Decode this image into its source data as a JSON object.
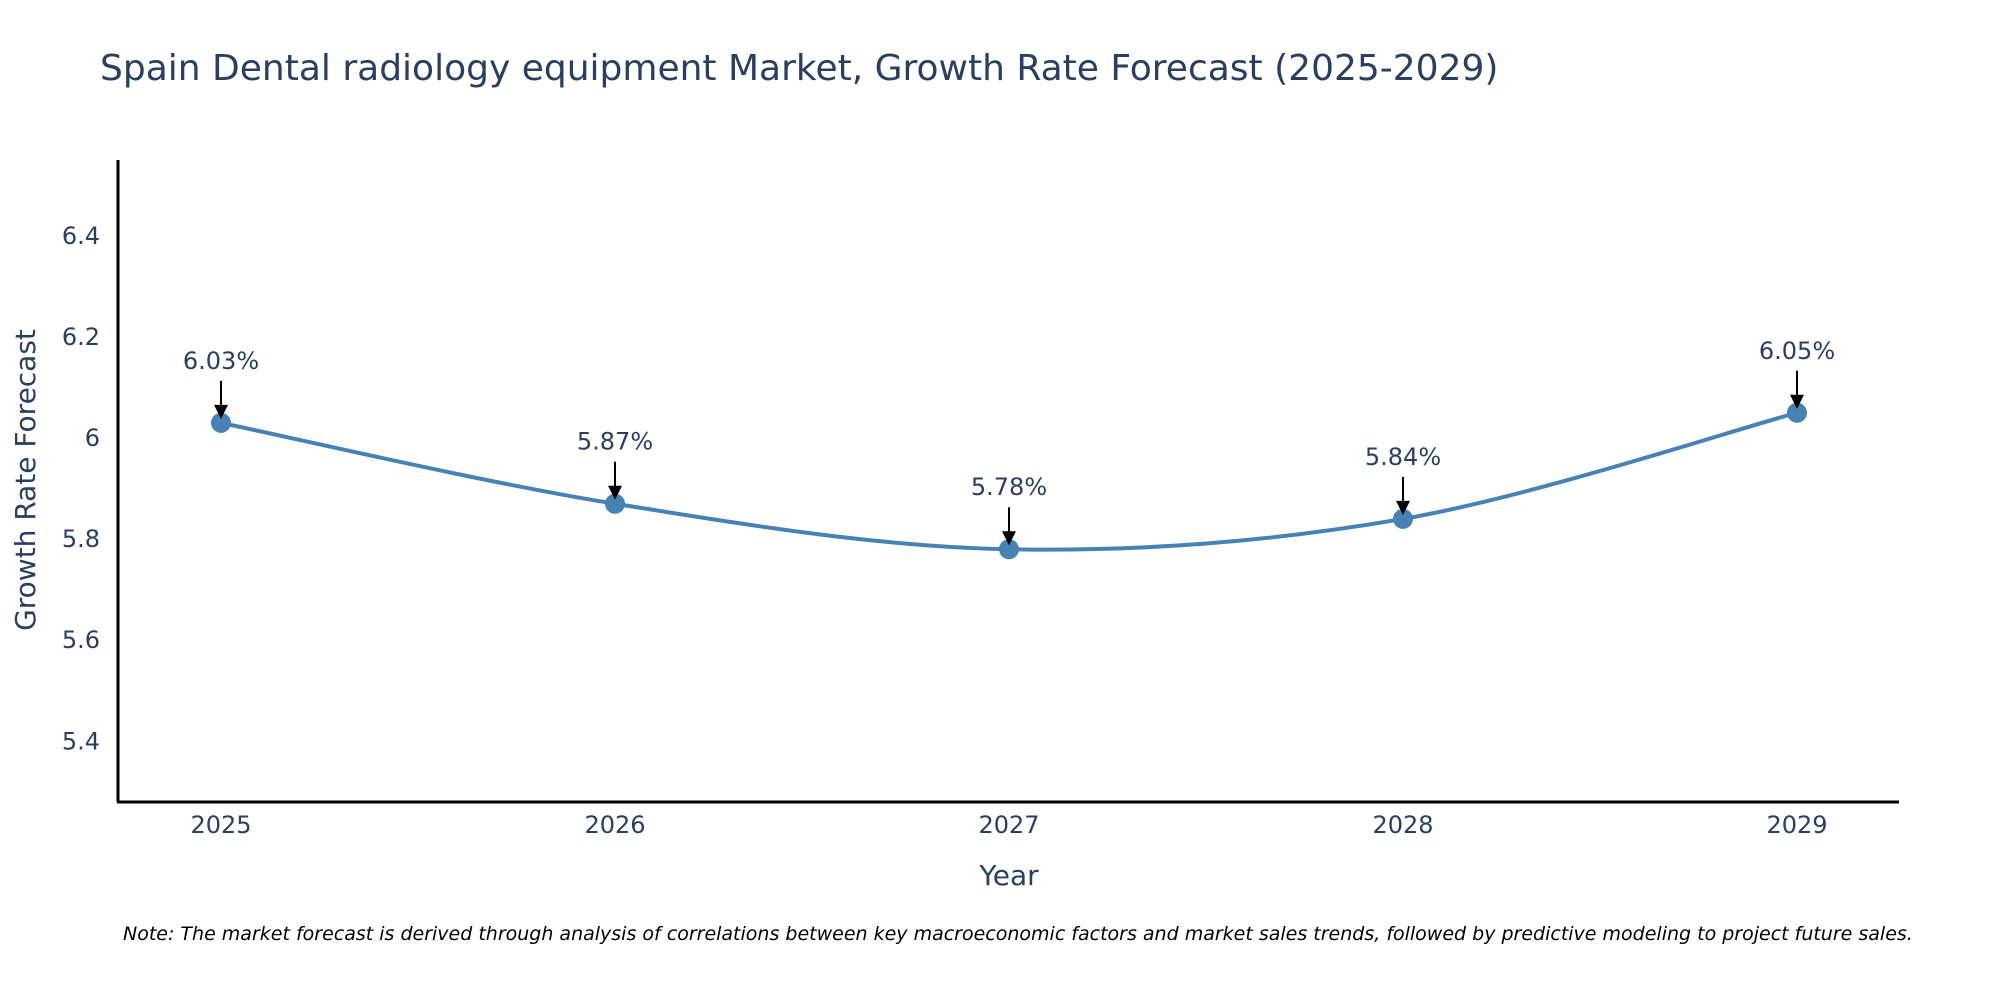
{
  "chart_data": {
    "type": "line",
    "title": "Spain Dental radiology equipment Market, Growth Rate Forecast (2025-2029)",
    "xlabel": "Year",
    "ylabel": "Growth Rate Forecast",
    "categories": [
      "2025",
      "2026",
      "2027",
      "2028",
      "2029"
    ],
    "values": [
      6.03,
      5.87,
      5.78,
      5.84,
      6.05
    ],
    "data_labels": [
      "6.03%",
      "5.87%",
      "5.78%",
      "5.84%",
      "6.05%"
    ],
    "yticks": [
      5.4,
      5.6,
      5.8,
      6,
      6.2,
      6.4
    ],
    "ytick_labels": [
      "5.4",
      "5.6",
      "5.8",
      "6",
      "6.2",
      "6.4"
    ],
    "ylim": [
      5.28,
      6.55
    ],
    "grid": false,
    "legend": "none",
    "note": "Note: The market forecast is derived through analysis of correlations between key macroeconomic factors and market sales trends, followed by predictive modeling to project future sales."
  },
  "colors": {
    "line": "#4682b4",
    "marker": "#4682b4",
    "axis": "#000000",
    "text": "#2a3f5f",
    "arrow": "#000000"
  }
}
